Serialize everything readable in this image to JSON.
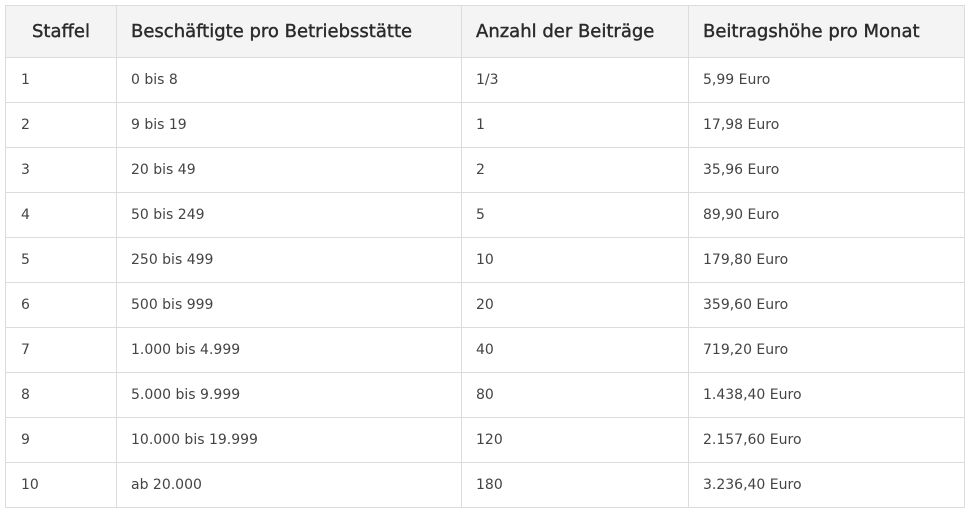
{
  "table": {
    "headers": [
      "Staffel",
      "Beschäftigte pro Betriebsstätte",
      "Anzahl der Beiträge",
      "Beitragshöhe pro Monat"
    ],
    "rows": [
      [
        "1",
        "0 bis 8",
        "1/3",
        "5,99 Euro"
      ],
      [
        "2",
        "9 bis 19",
        "1",
        "17,98 Euro"
      ],
      [
        "3",
        "20 bis 49",
        "2",
        "35,96 Euro"
      ],
      [
        "4",
        "50 bis 249",
        "5",
        "89,90 Euro"
      ],
      [
        "5",
        "250 bis 499",
        "10",
        "179,80 Euro"
      ],
      [
        "6",
        "500 bis 999",
        "20",
        "359,60 Euro"
      ],
      [
        "7",
        "1.000 bis 4.999",
        "40",
        "719,20 Euro"
      ],
      [
        "8",
        "5.000 bis 9.999",
        "80",
        "1.438,40 Euro"
      ],
      [
        "9",
        "10.000 bis 19.999",
        "120",
        "2.157,60 Euro"
      ],
      [
        "10",
        "ab 20.000",
        "180",
        "3.236,40 Euro"
      ]
    ]
  }
}
